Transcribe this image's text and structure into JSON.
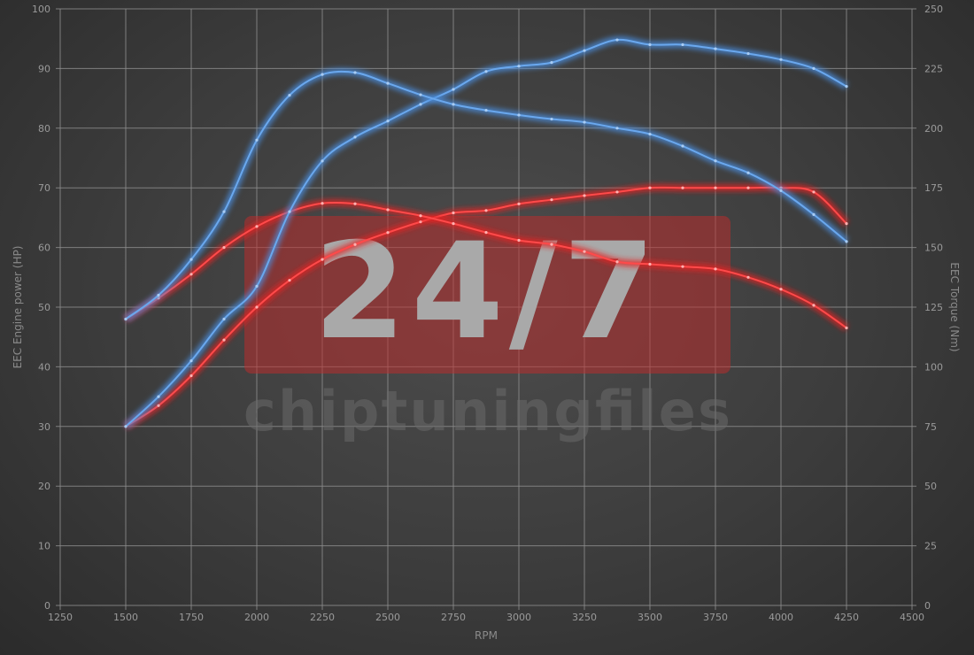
{
  "chart_data": {
    "type": "line",
    "title": "",
    "xlabel": "RPM",
    "ylabel_left": "EEC Engine power (HP)",
    "ylabel_right": "EEC Torque (Nm)",
    "xlim": [
      1250,
      4500
    ],
    "ylim_left": [
      0,
      100
    ],
    "ylim_right": [
      0,
      250
    ],
    "x_ticks": [
      1250,
      1500,
      1750,
      2000,
      2250,
      2500,
      2750,
      3000,
      3250,
      3500,
      3750,
      4000,
      4250,
      4500
    ],
    "y_left_ticks": [
      0,
      10,
      20,
      30,
      40,
      50,
      60,
      70,
      80,
      90,
      100
    ],
    "y_right_ticks": [
      0,
      25,
      50,
      75,
      100,
      125,
      150,
      175,
      200,
      225,
      250
    ],
    "grid": true,
    "legend": "none",
    "x": [
      1500,
      1625,
      1750,
      1875,
      2000,
      2125,
      2250,
      2375,
      2500,
      2625,
      2750,
      2875,
      3000,
      3125,
      3250,
      3375,
      3500,
      3625,
      3750,
      3875,
      4000,
      4125,
      4250
    ],
    "series": [
      {
        "axis": "left",
        "color": "#e52222",
        "values": [
          30,
          33.5,
          38.5,
          44.5,
          50,
          54.5,
          58,
          60.5,
          62.5,
          64.3,
          65.8,
          66.2,
          67.3,
          68,
          68.7,
          69.3,
          70,
          70,
          70,
          70,
          70,
          69.3,
          64
        ]
      },
      {
        "axis": "right",
        "color": "#e52222",
        "values": [
          120,
          128.8,
          138.8,
          150,
          158.8,
          165,
          168.5,
          168.3,
          165.8,
          163.3,
          160,
          156.3,
          153,
          151.3,
          148.3,
          144,
          143,
          142,
          141,
          137.5,
          132.5,
          125.8,
          116.3
        ]
      },
      {
        "axis": "left",
        "color": "#4a8fe0",
        "values": [
          30,
          35,
          41,
          48,
          53.5,
          66,
          74.5,
          78.5,
          81.2,
          84,
          86.5,
          89.5,
          90.4,
          91,
          93,
          94.8,
          94,
          94,
          93.3,
          92.5,
          91.5,
          90,
          87
        ]
      },
      {
        "axis": "right",
        "color": "#4a8fe0",
        "values": [
          120,
          130,
          145,
          165,
          195,
          213.8,
          222.5,
          223.3,
          218.8,
          214,
          210,
          207.5,
          205.5,
          203.8,
          202.5,
          200,
          197.5,
          192.5,
          186.3,
          181.3,
          173.8,
          163.8,
          152.5
        ]
      }
    ]
  },
  "watermark": {
    "big": "24/7",
    "small": "chiptuningfiles",
    "box_color": "#c42a2a"
  },
  "colors": {
    "grid": "#8c8c8c",
    "background": "#404040"
  }
}
